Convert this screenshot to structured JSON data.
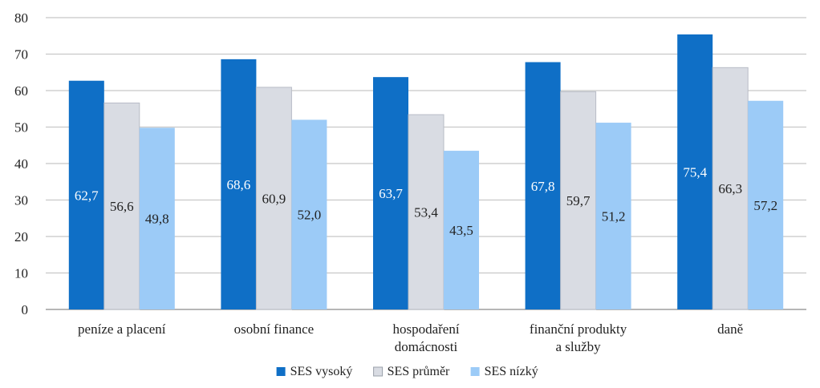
{
  "chart_data": {
    "type": "bar",
    "categories": [
      [
        "peníze a placení"
      ],
      [
        "osobní finance"
      ],
      [
        "hospodaření",
        "domácnosti"
      ],
      [
        "finanční produkty",
        "a služby"
      ],
      [
        "daně"
      ]
    ],
    "series": [
      {
        "name": "SES vysoký",
        "color": "#0f6fc6",
        "label_color": "#ffffff",
        "values": [
          62.7,
          68.6,
          63.7,
          67.8,
          75.4
        ],
        "labels": [
          "62,7",
          "68,6",
          "63,7",
          "67,8",
          "75,4"
        ]
      },
      {
        "name": "SES průměr",
        "color": "#d9dce3",
        "label_color": "#222222",
        "values": [
          56.6,
          60.9,
          53.4,
          59.7,
          66.3
        ],
        "labels": [
          "56,6",
          "60,9",
          "53,4",
          "59,7",
          "66,3"
        ]
      },
      {
        "name": "SES nízký",
        "color": "#9ccbf7",
        "label_color": "#222222",
        "values": [
          49.8,
          52.0,
          43.5,
          51.2,
          57.2
        ],
        "labels": [
          "49,8",
          "52,0",
          "43,5",
          "51,2",
          "57,2"
        ]
      }
    ],
    "ylim": [
      0,
      80
    ],
    "yticks": [
      0,
      10,
      20,
      30,
      40,
      50,
      60,
      70,
      80
    ],
    "grid": true,
    "legend": "bottom-center",
    "title": "",
    "xlabel": "",
    "ylabel": ""
  }
}
